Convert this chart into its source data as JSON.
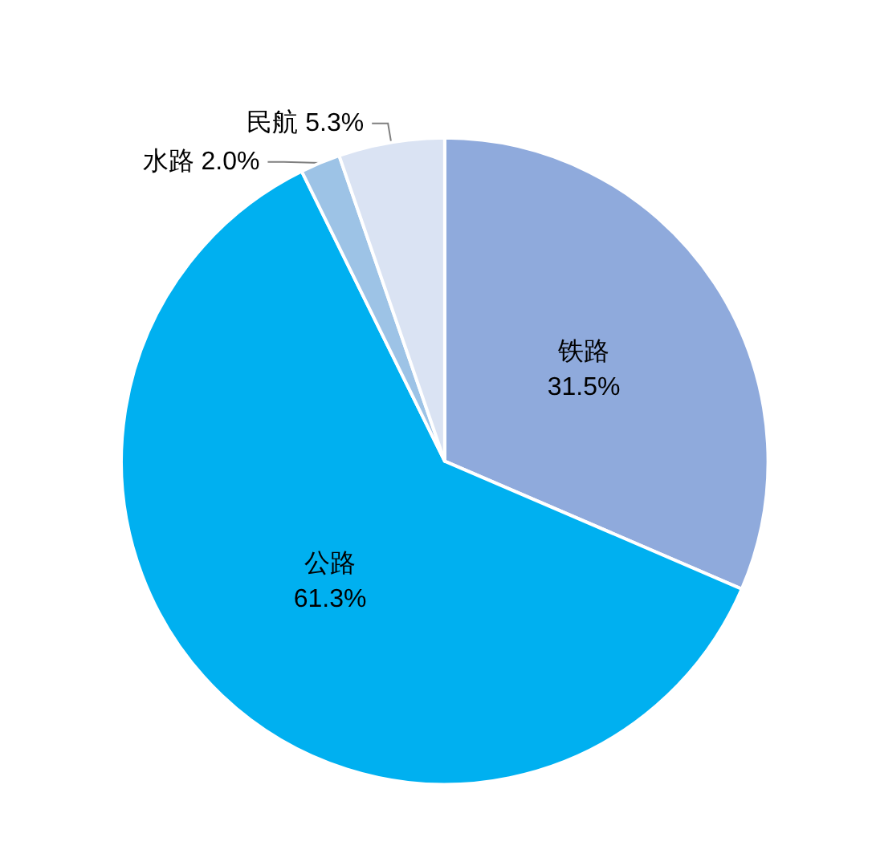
{
  "chart_data": {
    "type": "pie",
    "categories": [
      "铁路",
      "公路",
      "水路",
      "民航"
    ],
    "values": [
      31.5,
      61.3,
      2.0,
      5.3
    ],
    "value_labels": [
      "31.5%",
      "61.3%",
      "2.0%",
      "5.3%"
    ],
    "colors": [
      "#8faadc",
      "#00b0f0",
      "#9dc3e6",
      "#dae3f3"
    ],
    "legend": false
  }
}
